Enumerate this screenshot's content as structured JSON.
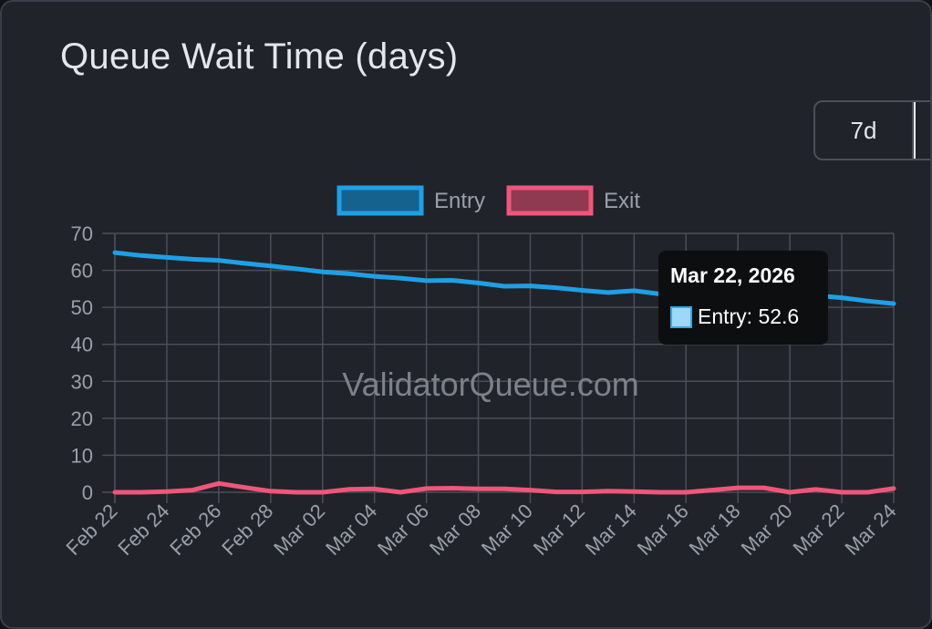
{
  "title": "Queue Wait Time (days)",
  "range_buttons": [
    {
      "label": "7d"
    },
    {
      "label": ""
    }
  ],
  "watermark": "ValidatorQueue.com",
  "colors": {
    "entry": "#1ea0e6",
    "exit": "#f0567a",
    "grid": "#4a4e57",
    "background": "#20232a"
  },
  "chart_data": {
    "type": "line",
    "title": "Queue Wait Time (days)",
    "xlabel": "",
    "ylabel": "",
    "ylim": [
      0,
      70
    ],
    "yticks": [
      0,
      10,
      20,
      30,
      40,
      50,
      60,
      70
    ],
    "grid": true,
    "legend_position": "top-center",
    "x": [
      "Feb 22",
      "Feb 23",
      "Feb 24",
      "Feb 25",
      "Feb 26",
      "Feb 27",
      "Feb 28",
      "Mar 01",
      "Mar 02",
      "Mar 03",
      "Mar 04",
      "Mar 05",
      "Mar 06",
      "Mar 07",
      "Mar 08",
      "Mar 09",
      "Mar 10",
      "Mar 11",
      "Mar 12",
      "Mar 13",
      "Mar 14",
      "Mar 15",
      "Mar 16",
      "Mar 17",
      "Mar 18",
      "Mar 19",
      "Mar 20",
      "Mar 21",
      "Mar 22",
      "Mar 23",
      "Mar 24"
    ],
    "xtick_labels": [
      "Feb 22",
      "Feb 24",
      "Feb 26",
      "Feb 28",
      "Mar 02",
      "Mar 04",
      "Mar 06",
      "Mar 08",
      "Mar 10",
      "Mar 12",
      "Mar 14",
      "Mar 16",
      "Mar 18",
      "Mar 20",
      "Mar 22",
      "Mar 24"
    ],
    "series": [
      {
        "name": "Entry",
        "values": [
          64.8,
          64.0,
          63.5,
          63.0,
          62.7,
          61.9,
          61.2,
          60.4,
          59.6,
          59.1,
          58.4,
          57.9,
          57.2,
          57.3,
          56.6,
          55.7,
          55.8,
          55.3,
          54.6,
          54.0,
          54.5,
          53.6,
          53.2,
          53.1,
          52.9,
          52.8,
          52.4,
          53.2,
          52.6,
          51.7,
          51.0
        ]
      },
      {
        "name": "Exit",
        "values": [
          0.0,
          0.0,
          0.2,
          0.6,
          2.4,
          1.3,
          0.3,
          0.0,
          0.0,
          0.8,
          0.9,
          0.0,
          1.0,
          1.1,
          0.9,
          0.9,
          0.6,
          0.1,
          0.1,
          0.3,
          0.2,
          0.0,
          0.0,
          0.6,
          1.2,
          1.2,
          0.0,
          0.8,
          0.0,
          0.0,
          1.0
        ]
      }
    ],
    "tooltip": {
      "title": "Mar 22, 2026",
      "text": "Entry: 52.6"
    }
  }
}
